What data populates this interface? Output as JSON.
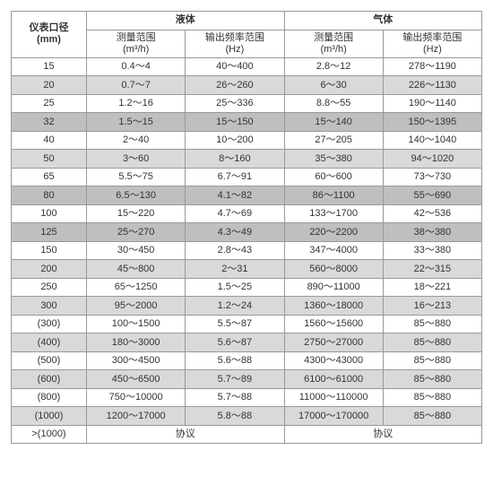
{
  "header": {
    "diameter_label": "仪表口径",
    "diameter_unit": "(mm)",
    "liquid_label": "液体",
    "gas_label": "气体",
    "measure_range_label": "测量范围",
    "measure_range_unit": "(m³/h)",
    "freq_range_label": "输出频率范围",
    "freq_range_unit": "(Hz)"
  },
  "rows": [
    {
      "dia": "15",
      "lr": "0.4～4",
      "lf": "40～400",
      "gr": "2.8～12",
      "gf": "278～1190",
      "shade": "odd"
    },
    {
      "dia": "20",
      "lr": "0.7～7",
      "lf": "26～260",
      "gr": "6～30",
      "gf": "226～1130",
      "shade": "even"
    },
    {
      "dia": "25",
      "lr": "1.2～16",
      "lf": "25～336",
      "gr": "8.8～55",
      "gf": "190～1140",
      "shade": "odd"
    },
    {
      "dia": "32",
      "lr": "1.5～15",
      "lf": "15～150",
      "gr": "15～140",
      "gf": "150～1395",
      "shade": "dark"
    },
    {
      "dia": "40",
      "lr": "2～40",
      "lf": "10～200",
      "gr": "27～205",
      "gf": "140～1040",
      "shade": "odd"
    },
    {
      "dia": "50",
      "lr": "3～60",
      "lf": "8～160",
      "gr": "35～380",
      "gf": "94～1020",
      "shade": "even"
    },
    {
      "dia": "65",
      "lr": "5.5～75",
      "lf": "6.7～91",
      "gr": "60～600",
      "gf": "73～730",
      "shade": "odd"
    },
    {
      "dia": "80",
      "lr": "6.5～130",
      "lf": "4.1～82",
      "gr": "86～1100",
      "gf": "55～690",
      "shade": "dark"
    },
    {
      "dia": "100",
      "lr": "15～220",
      "lf": "4.7～69",
      "gr": "133～1700",
      "gf": "42～536",
      "shade": "odd"
    },
    {
      "dia": "125",
      "lr": "25～270",
      "lf": "4.3～49",
      "gr": "220～2200",
      "gf": "38～380",
      "shade": "dark"
    },
    {
      "dia": "150",
      "lr": "30～450",
      "lf": "2.8～43",
      "gr": "347～4000",
      "gf": "33～380",
      "shade": "odd"
    },
    {
      "dia": "200",
      "lr": "45～800",
      "lf": "2～31",
      "gr": "560～8000",
      "gf": "22～315",
      "shade": "even"
    },
    {
      "dia": "250",
      "lr": "65～1250",
      "lf": "1.5～25",
      "gr": "890～11000",
      "gf": "18～221",
      "shade": "odd"
    },
    {
      "dia": "300",
      "lr": "95～2000",
      "lf": "1.2～24",
      "gr": "1360～18000",
      "gf": "16～213",
      "shade": "even"
    },
    {
      "dia": "(300)",
      "lr": "100～1500",
      "lf": "5.5～87",
      "gr": "1560～15600",
      "gf": "85～880",
      "shade": "odd"
    },
    {
      "dia": "(400)",
      "lr": "180～3000",
      "lf": "5.6～87",
      "gr": "2750～27000",
      "gf": "85～880",
      "shade": "even"
    },
    {
      "dia": "(500)",
      "lr": "300～4500",
      "lf": "5.6～88",
      "gr": "4300～43000",
      "gf": "85～880",
      "shade": "odd"
    },
    {
      "dia": "(600)",
      "lr": "450～6500",
      "lf": "5.7～89",
      "gr": "6100～61000",
      "gf": "85～880",
      "shade": "even"
    },
    {
      "dia": "(800)",
      "lr": "750～10000",
      "lf": "5.7～88",
      "gr": "11000～110000",
      "gf": "85～880",
      "shade": "odd"
    },
    {
      "dia": "(1000)",
      "lr": "1200～17000",
      "lf": "5.8～88",
      "gr": "17000～170000",
      "gf": "85～880",
      "shade": "even"
    }
  ],
  "lastRow": {
    "dia": ">(1000)",
    "liquid": "协议",
    "gas": "协议",
    "shade": "odd"
  }
}
